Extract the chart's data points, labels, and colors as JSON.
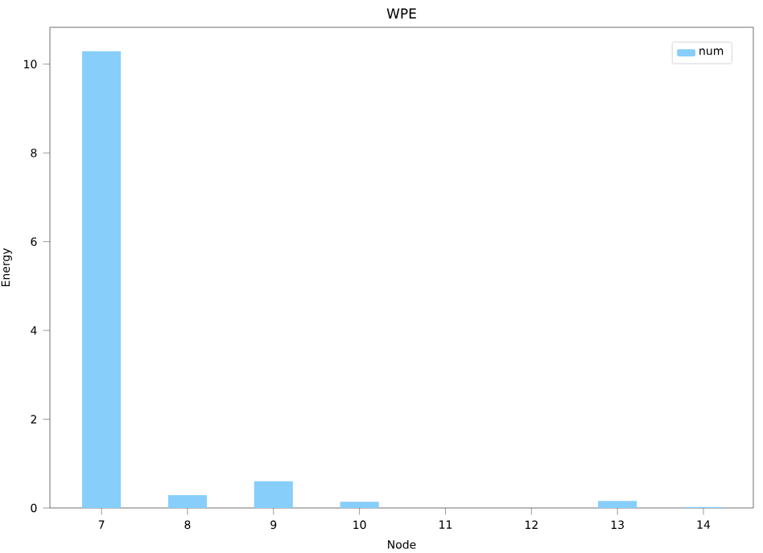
{
  "chart_data": {
    "type": "bar",
    "title": "WPE",
    "xlabel": "Node",
    "ylabel": "Energy",
    "categories": [
      "7",
      "8",
      "9",
      "10",
      "11",
      "12",
      "13",
      "14"
    ],
    "series": [
      {
        "name": "num",
        "color": "#87cefa",
        "values": [
          10.29,
          0.29,
          0.6,
          0.14,
          0,
          0,
          0.16,
          0.02
        ]
      }
    ],
    "ylim": [
      0,
      10.83
    ],
    "yticks": [
      0,
      2,
      4,
      6,
      8,
      10
    ],
    "legend": "top right"
  }
}
